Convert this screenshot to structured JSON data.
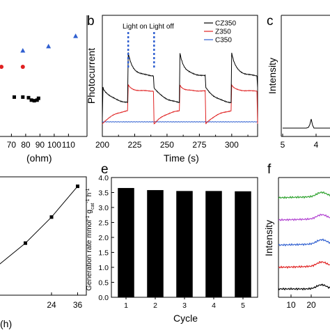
{
  "chart_data": [
    {
      "panel": "a",
      "type": "scatter",
      "xlabel": "(ohm)",
      "x_ticks": [
        "70",
        "80",
        "90",
        "100",
        "110"
      ],
      "xlim": [
        62,
        123
      ],
      "ylim": [
        0,
        10
      ],
      "series": [
        {
          "marker": "triangle",
          "color": "#2f5fd0",
          "points": [
            [
              78,
              7.1
            ],
            [
              96,
              7.45
            ],
            [
              115,
              8.3
            ]
          ]
        },
        {
          "marker": "circle",
          "color": "#e02020",
          "points": [
            [
              63,
              5.75
            ],
            [
              78,
              5.75
            ]
          ]
        },
        {
          "marker": "square",
          "color": "#000000",
          "points": [
            [
              72,
              3.25
            ],
            [
              78,
              3.25
            ],
            [
              82,
              3.2
            ],
            [
              84,
              3.0
            ],
            [
              86,
              2.95
            ],
            [
              88,
              3.0
            ],
            [
              89,
              3.15
            ]
          ]
        }
      ]
    },
    {
      "panel": "b",
      "type": "line",
      "xlabel": "Time (s)",
      "ylabel": "Photocurrent",
      "x_ticks": [
        "200",
        "225",
        "250",
        "275",
        "300"
      ],
      "xlim": [
        200,
        320
      ],
      "ylim": [
        0,
        1
      ],
      "light_on_time": 220,
      "light_off_time": 240,
      "annotation": "Light on Light off",
      "series": [
        {
          "name": "CZ350",
          "color": "#000000"
        },
        {
          "name": "Z350",
          "color": "#e02020"
        },
        {
          "name": "C350",
          "color": "#2f5fd0"
        }
      ]
    },
    {
      "panel": "c",
      "type": "line",
      "ylabel": "Intensity",
      "x_ticks": [
        "5",
        "4"
      ]
    },
    {
      "panel": "d",
      "type": "line",
      "xlabel": "(h)",
      "x_ticks": [
        "24",
        "36"
      ],
      "xlim": [
        0,
        40
      ],
      "ylim": [
        0,
        10
      ],
      "points": [
        [
          0,
          2.6
        ],
        [
          12,
          4.4
        ],
        [
          24,
          6.6
        ],
        [
          36,
          9.2
        ]
      ]
    },
    {
      "panel": "e",
      "type": "bar",
      "xlabel": "Cycle",
      "ylabel_parts": [
        "Generation rate mmol",
        "-1",
        " g",
        "cat",
        "-1",
        " h",
        "-1"
      ],
      "categories": [
        "1",
        "2",
        "3",
        "4",
        "5"
      ],
      "values": [
        3.65,
        3.58,
        3.55,
        3.55,
        3.54
      ],
      "ylim": [
        0,
        4.0
      ],
      "y_ticks": [
        "0.0",
        "0.5",
        "1.0",
        "1.5",
        "2.0",
        "2.5",
        "3.0",
        "3.5",
        "4.0"
      ],
      "color": "#000000"
    },
    {
      "panel": "f",
      "type": "line",
      "ylabel": "Intensity",
      "x_ticks": [
        "10",
        "20"
      ],
      "series": [
        {
          "color": "#2aa02a"
        },
        {
          "color": "#b040d0"
        },
        {
          "color": "#2f5fd0"
        },
        {
          "color": "#e02020"
        },
        {
          "color": "#000000"
        }
      ]
    }
  ]
}
